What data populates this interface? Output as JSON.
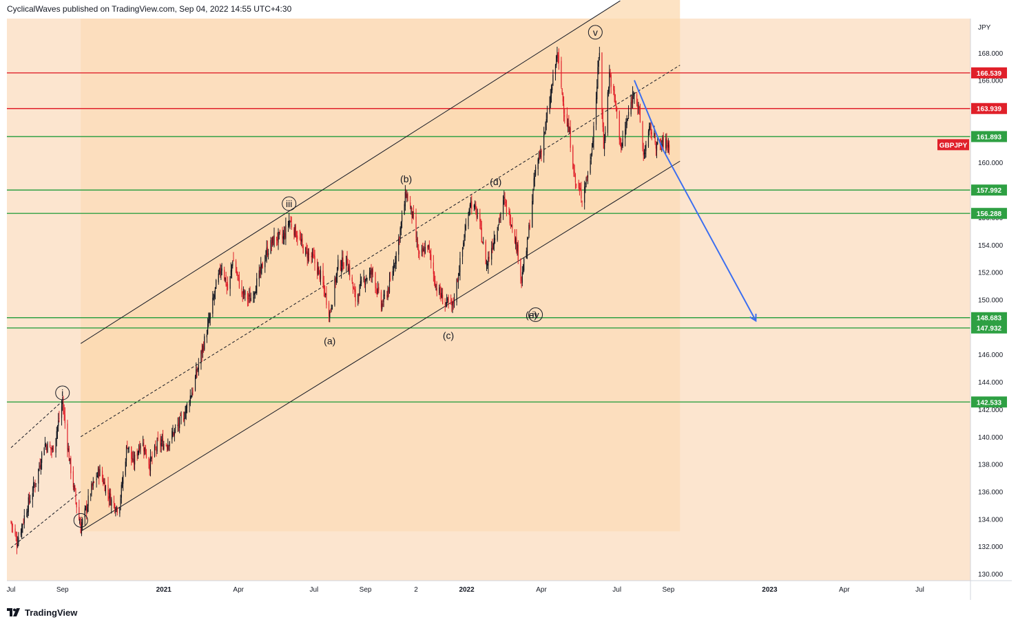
{
  "header": {
    "published": "CyclicalWaves published on TradingView.com, Sep 04, 2022 14:55 UTC+4:30"
  },
  "footer": {
    "brand": "TradingView",
    "logo_icon": "tradingview-logo-icon"
  },
  "chart_data": {
    "type": "candlestick",
    "symbol": "GBPJPY",
    "currency": "JPY",
    "colors": {
      "background": "#fce5cf",
      "channel_fill": "#fcd9b0",
      "up": "#131722",
      "down": "#e0202a",
      "support": "#2ea043",
      "resistance": "#e0202a",
      "projection": "#3b6ef0",
      "symbol_tag": "#e0202a"
    },
    "y_axis": {
      "ticks": [
        "130.000",
        "132.000",
        "134.000",
        "136.000",
        "138.000",
        "140.000",
        "142.000",
        "144.000",
        "146.000",
        "148.000",
        "150.000",
        "152.000",
        "154.000",
        "156.000",
        "158.000",
        "160.000",
        "162.000",
        "164.000",
        "166.000",
        "168.000"
      ],
      "ylim": [
        129.5,
        170.5
      ]
    },
    "x_axis": {
      "ticks": [
        {
          "label": "Jul",
          "date": "2020-07-01",
          "bold": false
        },
        {
          "label": "Sep",
          "date": "2020-09-01",
          "bold": false
        },
        {
          "label": "2021",
          "date": "2021-01-01",
          "bold": true
        },
        {
          "label": "Apr",
          "date": "2021-04-01",
          "bold": false
        },
        {
          "label": "Jul",
          "date": "2021-07-01",
          "bold": false
        },
        {
          "label": "Sep",
          "date": "2021-09-01",
          "bold": false
        },
        {
          "label": "2",
          "date": "2021-11-01",
          "bold": false
        },
        {
          "label": "2022",
          "date": "2022-01-01",
          "bold": true
        },
        {
          "label": "Apr",
          "date": "2022-04-01",
          "bold": false
        },
        {
          "label": "Jul",
          "date": "2022-07-01",
          "bold": false
        },
        {
          "label": "Sep",
          "date": "2022-09-01",
          "bold": false
        },
        {
          "label": "2023",
          "date": "2023-01-01",
          "bold": true
        },
        {
          "label": "Apr",
          "date": "2023-04-01",
          "bold": false
        },
        {
          "label": "Jul",
          "date": "2023-07-01",
          "bold": false
        }
      ]
    },
    "horizontal_levels": [
      {
        "value": 166.539,
        "label": "166.539",
        "kind": "resistance"
      },
      {
        "value": 163.939,
        "label": "163.939",
        "kind": "resistance"
      },
      {
        "value": 161.893,
        "label": "161.893",
        "kind": "support"
      },
      {
        "value": 157.992,
        "label": "157.992",
        "kind": "support"
      },
      {
        "value": 156.288,
        "label": "156.288",
        "kind": "support"
      },
      {
        "value": 148.683,
        "label": "148.683",
        "kind": "support"
      },
      {
        "value": 147.932,
        "label": "147.932",
        "kind": "support"
      },
      {
        "value": 142.533,
        "label": "142.533",
        "kind": "support"
      }
    ],
    "price_tag": {
      "label": "GBPJPY",
      "value": 161.3
    },
    "price_path": [
      [
        "2020-07-01",
        133.8
      ],
      [
        "2020-07-08",
        132.3
      ],
      [
        "2020-07-20",
        134.8
      ],
      [
        "2020-08-01",
        137.0
      ],
      [
        "2020-08-10",
        139.5
      ],
      [
        "2020-08-20",
        139.0
      ],
      [
        "2020-09-01",
        142.5
      ],
      [
        "2020-09-10",
        138.0
      ],
      [
        "2020-09-18",
        135.0
      ],
      [
        "2020-09-23",
        133.3
      ],
      [
        "2020-10-05",
        136.0
      ],
      [
        "2020-10-15",
        137.5
      ],
      [
        "2020-10-30",
        135.3
      ],
      [
        "2020-11-08",
        134.7
      ],
      [
        "2020-11-18",
        139.5
      ],
      [
        "2020-11-25",
        138.0
      ],
      [
        "2020-12-05",
        139.8
      ],
      [
        "2020-12-15",
        138.0
      ],
      [
        "2020-12-25",
        139.5
      ],
      [
        "2021-01-05",
        139.5
      ],
      [
        "2021-01-15",
        140.5
      ],
      [
        "2021-01-25",
        141.5
      ],
      [
        "2021-02-05",
        143.5
      ],
      [
        "2021-02-15",
        146.0
      ],
      [
        "2021-02-25",
        148.5
      ],
      [
        "2021-03-05",
        151.0
      ],
      [
        "2021-03-12",
        152.5
      ],
      [
        "2021-03-20",
        150.5
      ],
      [
        "2021-03-25",
        153.0
      ],
      [
        "2021-04-05",
        150.5
      ],
      [
        "2021-04-15",
        150.0
      ],
      [
        "2021-04-25",
        151.5
      ],
      [
        "2021-05-05",
        153.5
      ],
      [
        "2021-05-15",
        154.5
      ],
      [
        "2021-05-25",
        154.5
      ],
      [
        "2021-06-01",
        155.8
      ],
      [
        "2021-06-10",
        154.8
      ],
      [
        "2021-06-20",
        153.5
      ],
      [
        "2021-06-30",
        153.0
      ],
      [
        "2021-07-10",
        151.5
      ],
      [
        "2021-07-20",
        149.0
      ],
      [
        "2021-07-30",
        152.5
      ],
      [
        "2021-08-10",
        152.8
      ],
      [
        "2021-08-20",
        150.0
      ],
      [
        "2021-08-30",
        151.5
      ],
      [
        "2021-09-10",
        152.0
      ],
      [
        "2021-09-20",
        149.5
      ],
      [
        "2021-09-30",
        151.0
      ],
      [
        "2021-10-10",
        154.0
      ],
      [
        "2021-10-20",
        157.8
      ],
      [
        "2021-10-28",
        156.0
      ],
      [
        "2021-11-05",
        153.0
      ],
      [
        "2021-11-15",
        154.0
      ],
      [
        "2021-11-25",
        151.0
      ],
      [
        "2021-12-05",
        149.8
      ],
      [
        "2021-12-15",
        149.5
      ],
      [
        "2021-12-25",
        153.0
      ],
      [
        "2022-01-05",
        157.2
      ],
      [
        "2022-01-15",
        156.0
      ],
      [
        "2022-01-25",
        152.5
      ],
      [
        "2022-02-05",
        155.0
      ],
      [
        "2022-02-15",
        157.2
      ],
      [
        "2022-02-25",
        155.5
      ],
      [
        "2022-03-05",
        153.0
      ],
      [
        "2022-03-08",
        151.5
      ],
      [
        "2022-03-15",
        154.0
      ],
      [
        "2022-03-25",
        159.5
      ],
      [
        "2022-04-01",
        161.0
      ],
      [
        "2022-04-10",
        164.0
      ],
      [
        "2022-04-20",
        168.0
      ],
      [
        "2022-04-28",
        164.0
      ],
      [
        "2022-05-05",
        162.0
      ],
      [
        "2022-05-12",
        158.5
      ],
      [
        "2022-05-20",
        157.5
      ],
      [
        "2022-05-30",
        160.0
      ],
      [
        "2022-06-05",
        164.0
      ],
      [
        "2022-06-10",
        168.2
      ],
      [
        "2022-06-15",
        161.0
      ],
      [
        "2022-06-22",
        166.5
      ],
      [
        "2022-06-30",
        164.0
      ],
      [
        "2022-07-06",
        161.0
      ],
      [
        "2022-07-15",
        163.5
      ],
      [
        "2022-07-22",
        165.5
      ],
      [
        "2022-07-28",
        163.5
      ],
      [
        "2022-08-02",
        160.5
      ],
      [
        "2022-08-10",
        162.5
      ],
      [
        "2022-08-20",
        161.0
      ],
      [
        "2022-08-26",
        161.5
      ],
      [
        "2022-09-02",
        161.3
      ]
    ],
    "channel": {
      "upper": [
        [
          "2020-09-23",
          146.8
        ],
        [
          "2022-07-05",
          171.8
        ]
      ],
      "lower": [
        [
          "2020-09-23",
          133.1
        ],
        [
          "2022-09-15",
          160.1
        ]
      ],
      "mid": [
        [
          "2020-09-23",
          140.0
        ],
        [
          "2022-09-15",
          167.1
        ]
      ],
      "box_end": "2022-09-15"
    },
    "outer_channel": {
      "upper": [
        [
          "2020-07-01",
          139.2
        ],
        [
          "2020-09-01",
          142.6
        ]
      ],
      "lower": [
        [
          "2020-07-01",
          131.9
        ],
        [
          "2020-09-23",
          136.0
        ]
      ]
    },
    "projection_arrow": [
      [
        "2022-07-22",
        166.0
      ],
      [
        "2022-08-25",
        161.0
      ],
      [
        "2022-12-15",
        148.5
      ]
    ],
    "wave_labels": [
      {
        "text": "i",
        "date": "2020-09-01",
        "value": 143.2,
        "circled": true
      },
      {
        "text": "ii",
        "date": "2020-09-23",
        "value": 133.9,
        "circled": true
      },
      {
        "text": "iii",
        "date": "2021-06-01",
        "value": 157.0,
        "circled": true
      },
      {
        "text": "iv",
        "date": "2022-03-25",
        "value": 148.9,
        "circled": true
      },
      {
        "text": "v",
        "date": "2022-06-05",
        "value": 169.5,
        "circled": true
      },
      {
        "text": "(a)",
        "date": "2021-07-20",
        "value": 147.0,
        "circled": false
      },
      {
        "text": "(b)",
        "date": "2021-10-20",
        "value": 158.8,
        "circled": false
      },
      {
        "text": "(c)",
        "date": "2021-12-10",
        "value": 147.4,
        "circled": false
      },
      {
        "text": "(d)",
        "date": "2022-02-05",
        "value": 158.6,
        "circled": false
      },
      {
        "text": "(e)",
        "date": "2022-03-20",
        "value": 148.9,
        "circled": false
      }
    ]
  }
}
